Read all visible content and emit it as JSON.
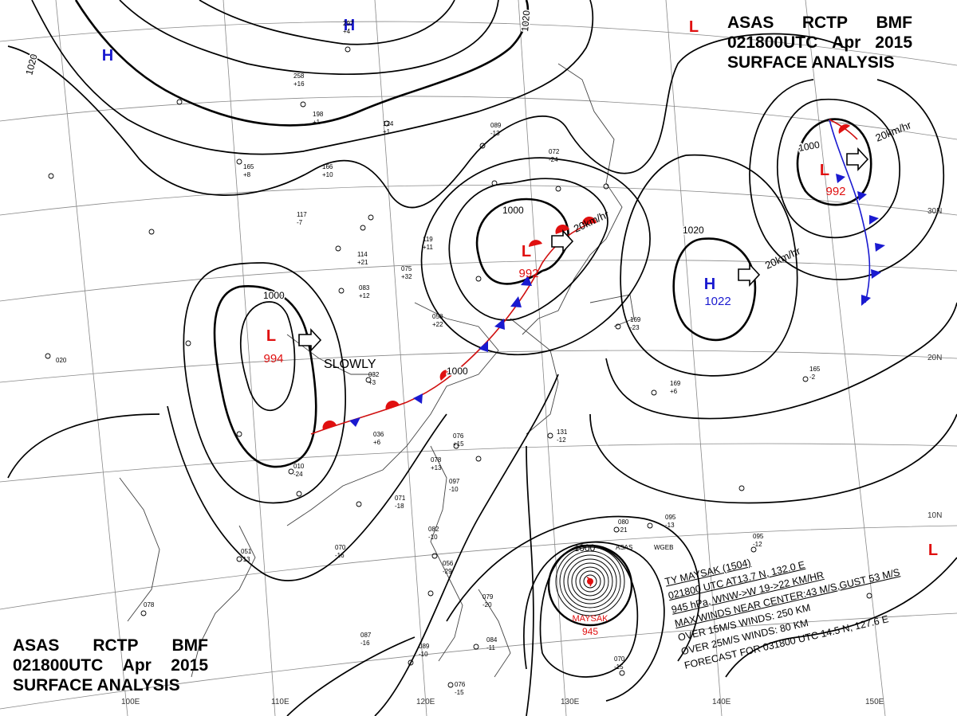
{
  "header": {
    "line1": [
      "ASAS",
      "RCTP",
      "BMF"
    ],
    "line2": [
      "021800UTC",
      "Apr",
      "2015"
    ],
    "line3": "SURFACE ANALYSIS"
  },
  "colors": {
    "low": "#e01010",
    "high": "#1a1ad0",
    "isobar": "#000000",
    "grid": "#777777"
  },
  "pressure_centers": [
    {
      "type": "L",
      "value": "994",
      "motion": "SLOWLY"
    },
    {
      "type": "L",
      "value": "992",
      "motion": "20km/hr"
    },
    {
      "type": "L",
      "value": "992",
      "motion": "20km/hr"
    },
    {
      "type": "H",
      "value": "1022",
      "motion": "20km/hr"
    },
    {
      "type": "H",
      "value": ""
    },
    {
      "type": "H",
      "value": ""
    },
    {
      "type": "L",
      "value": ""
    },
    {
      "type": "L",
      "value": ""
    }
  ],
  "isobar_labels": [
    "1020",
    "1020",
    "1000",
    "1000",
    "1000",
    "1020",
    "1000"
  ],
  "lat_labels": [
    "30N",
    "20N",
    "10N"
  ],
  "lon_labels": [
    "100E",
    "110E",
    "120E",
    "130E",
    "140E",
    "150E"
  ],
  "typhoon": {
    "name": "MAYSAK",
    "pressure": "945",
    "isobar": "1000",
    "lines": [
      "TY  MAYSAK  (1504)",
      "021800 UTC  AT13.7 N, 132.0 E",
      "945 hPa, WNW->W  19->22 KM/HR",
      "MAX WINDS NEAR CENTER:43 M/S,GUST 53 M/S",
      "OVER 15M/S WINDS: 250 KM",
      "OVER 25M/S WINDS: 80 KM",
      "FORECAST FOR 031800 UTC 14.5 N, 127.6 E"
    ]
  },
  "station_plots": [
    {
      "t": "297",
      "p": "+4"
    },
    {
      "t": "258",
      "p": "+16"
    },
    {
      "t": "124",
      "p": "+1"
    },
    {
      "t": "198",
      "p": "+1"
    },
    {
      "t": "166",
      "p": "+10"
    },
    {
      "t": "165",
      "p": "+8"
    },
    {
      "t": "117",
      "p": "-7"
    },
    {
      "t": "114",
      "p": "+21"
    },
    {
      "t": "075",
      "p": "+32"
    },
    {
      "t": "083",
      "p": "+12"
    },
    {
      "t": "119",
      "p": "+11"
    },
    {
      "t": "032",
      "p": "+3"
    },
    {
      "t": "058",
      "p": "+22"
    },
    {
      "t": "089",
      "p": "-13"
    },
    {
      "t": "072",
      "p": "-24"
    },
    {
      "t": "169",
      "p": "-23"
    },
    {
      "t": "165",
      "p": "-2"
    },
    {
      "t": "169",
      "p": "+6"
    },
    {
      "t": "036",
      "p": "+6"
    },
    {
      "t": "076",
      "p": "+15"
    },
    {
      "t": "078",
      "p": "+13"
    },
    {
      "t": "097",
      "p": "-10"
    },
    {
      "t": "071",
      "p": "-18"
    },
    {
      "t": "010",
      "p": "-24"
    },
    {
      "t": "070",
      "p": "-16"
    },
    {
      "t": "051",
      "p": "-13"
    },
    {
      "t": "082",
      "p": "-10"
    },
    {
      "t": "056",
      "p": "-29"
    },
    {
      "t": "079",
      "p": "-20"
    },
    {
      "t": "087",
      "p": "-16"
    },
    {
      "t": "089",
      "p": "-10"
    },
    {
      "t": "084",
      "p": "-11"
    },
    {
      "t": "076",
      "p": "-15"
    },
    {
      "t": "070",
      "p": "-15"
    },
    {
      "t": "095",
      "p": "-12"
    },
    {
      "t": "080",
      "p": "-21"
    },
    {
      "t": "095",
      "p": "-13"
    },
    {
      "t": "131",
      "p": "-12"
    },
    {
      "t": "020",
      "p": ""
    },
    {
      "t": "078",
      "p": ""
    }
  ],
  "station_ids": [
    "WGEB",
    "ASAS"
  ]
}
